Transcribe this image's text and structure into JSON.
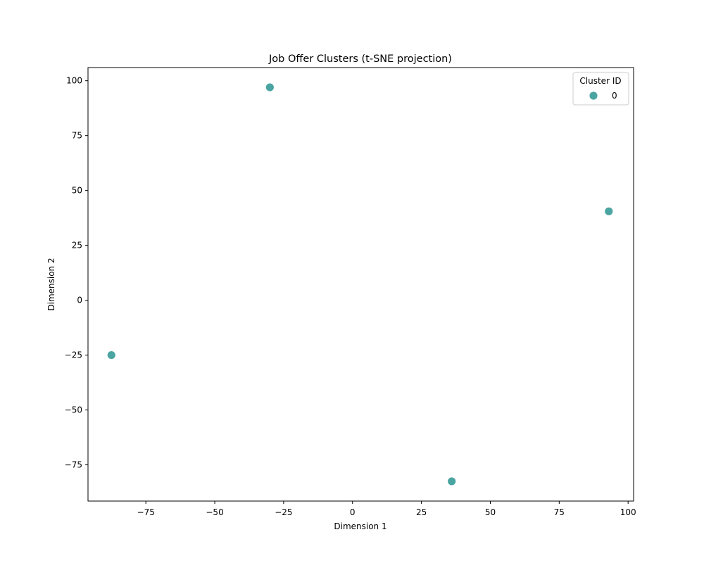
{
  "chart_data": {
    "type": "scatter",
    "title": "Job Offer Clusters (t-SNE projection)",
    "xlabel": "Dimension 1",
    "ylabel": "Dimension 2",
    "xlim": [
      -96,
      102
    ],
    "ylim": [
      -91.5,
      106
    ],
    "xticks": [
      -75,
      -50,
      -25,
      0,
      25,
      50,
      75,
      100
    ],
    "yticks": [
      -75,
      -50,
      -25,
      0,
      25,
      50,
      75,
      100
    ],
    "grid": false,
    "legend": {
      "title": "Cluster ID",
      "placement": "top-right",
      "entries": [
        {
          "label": "0",
          "color": "#4aa5a2"
        }
      ]
    },
    "series": [
      {
        "name": "0",
        "color": "#4aa5a2",
        "points": [
          {
            "x": -30,
            "y": 97
          },
          {
            "x": 93,
            "y": 40.5
          },
          {
            "x": -87.5,
            "y": -25
          },
          {
            "x": 36,
            "y": -82.5
          }
        ]
      }
    ]
  }
}
